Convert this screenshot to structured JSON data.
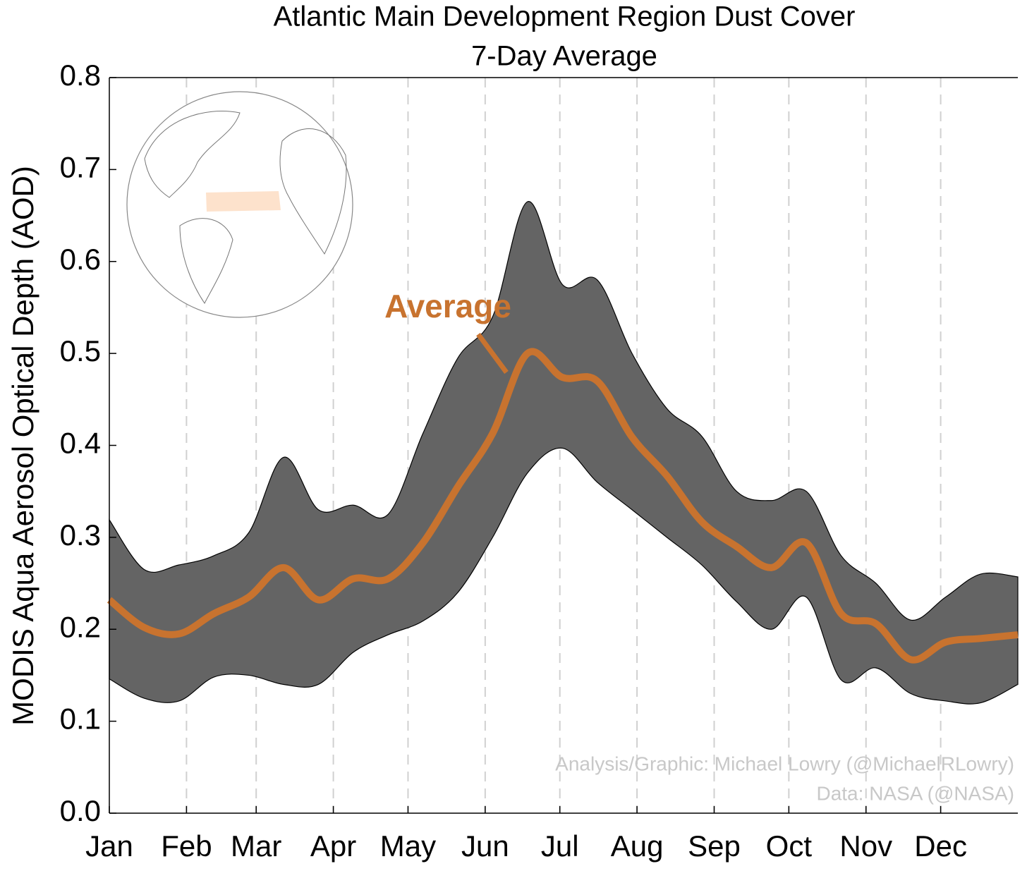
{
  "chart_data": {
    "type": "band-line",
    "title": "Atlantic Main Development Region Dust Cover",
    "subtitle": "7-Day Average",
    "y_label": "MODIS Aqua Aerosol Optical Depth (AOD)",
    "annotation": "Average",
    "credits": [
      "Analysis/Graphic: Michael Lowry (@MichaelRLowry)",
      "Data: NASA (@NASA)"
    ],
    "x": [
      0,
      14,
      28,
      42,
      56,
      70,
      84,
      98,
      112,
      126,
      140,
      154,
      168,
      182,
      196,
      210,
      224,
      238,
      252,
      266,
      280,
      294,
      308,
      322,
      336,
      350,
      365
    ],
    "band": {
      "color": "#646464",
      "upper": [
        0.319,
        0.265,
        0.27,
        0.28,
        0.305,
        0.387,
        0.33,
        0.335,
        0.325,
        0.413,
        0.495,
        0.54,
        0.665,
        0.575,
        0.58,
        0.5,
        0.44,
        0.41,
        0.35,
        0.34,
        0.35,
        0.28,
        0.25,
        0.21,
        0.235,
        0.26,
        0.257
      ],
      "lower": [
        0.146,
        0.125,
        0.122,
        0.148,
        0.15,
        0.14,
        0.14,
        0.175,
        0.194,
        0.209,
        0.24,
        0.3,
        0.37,
        0.397,
        0.36,
        0.33,
        0.3,
        0.27,
        0.23,
        0.2,
        0.235,
        0.145,
        0.158,
        0.13,
        0.122,
        0.12,
        0.14
      ]
    },
    "average": {
      "color": "#c8732f",
      "values": [
        0.232,
        0.202,
        0.195,
        0.217,
        0.235,
        0.267,
        0.232,
        0.255,
        0.255,
        0.294,
        0.355,
        0.413,
        0.5,
        0.474,
        0.47,
        0.409,
        0.367,
        0.317,
        0.29,
        0.267,
        0.294,
        0.217,
        0.206,
        0.167,
        0.186,
        0.19,
        0.194
      ]
    },
    "xlim": [
      0,
      365
    ],
    "xticks": [
      {
        "value": 0,
        "label": "Jan"
      },
      {
        "value": 31,
        "label": "Feb"
      },
      {
        "value": 59,
        "label": "Mar"
      },
      {
        "value": 90,
        "label": "Apr"
      },
      {
        "value": 120,
        "label": "May"
      },
      {
        "value": 151,
        "label": "Jun"
      },
      {
        "value": 181,
        "label": "Jul"
      },
      {
        "value": 212,
        "label": "Aug"
      },
      {
        "value": 243,
        "label": "Sep"
      },
      {
        "value": 273,
        "label": "Oct"
      },
      {
        "value": 304,
        "label": "Nov"
      },
      {
        "value": 334,
        "label": "Dec"
      }
    ],
    "ylim": [
      0,
      0.8
    ],
    "yticks": [
      {
        "value": 0,
        "label": "0.0"
      },
      0.1,
      0.2,
      0.3,
      0.4,
      0.5,
      0.6,
      0.7,
      0.8
    ],
    "grid": true
  }
}
